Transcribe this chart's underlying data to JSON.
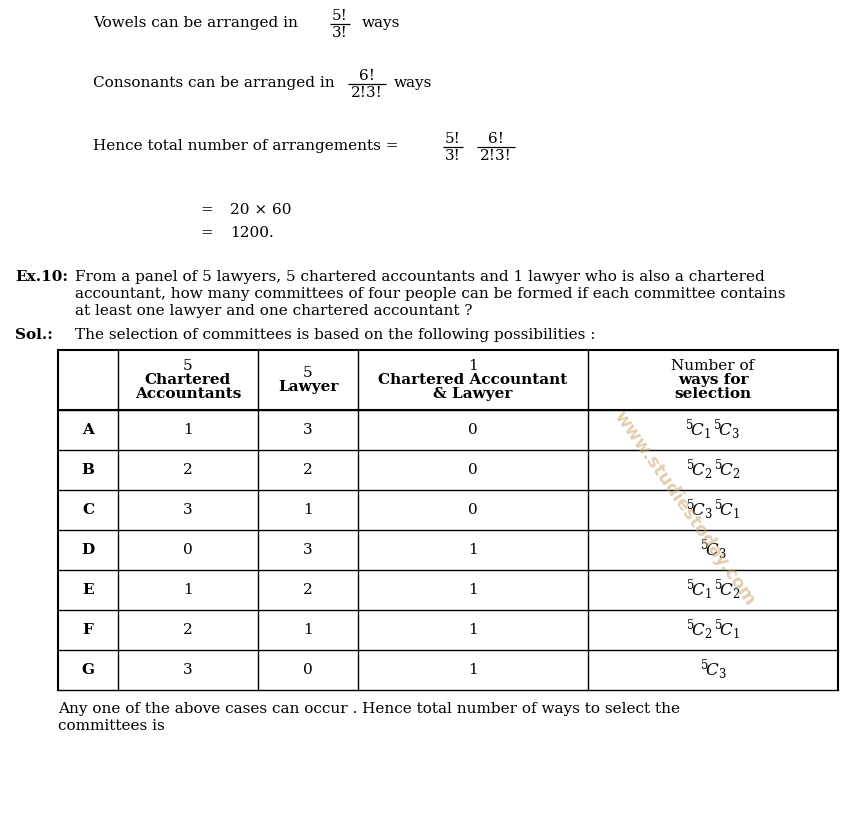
{
  "bg_color": "#ffffff",
  "text_color": "#000000",
  "font_size": 11,
  "font_family": "DejaVu Serif",
  "watermark_color": "#c8a86e",
  "table_data": {
    "col_labels": [
      "",
      "5\nChartered\nAccountants",
      "5\nLawyer",
      "1\nChartered Accountant\n& Lawyer",
      "Number of\nways for\nselection"
    ],
    "rows": [
      [
        "A",
        "1",
        "3",
        "0",
        "$^{5}\\!C_{1}\\,^{5}\\!C_{3}$"
      ],
      [
        "B",
        "2",
        "2",
        "0",
        "$^{5}\\!C_{2}\\,^{5}\\!C_{2}$"
      ],
      [
        "C",
        "3",
        "1",
        "0",
        "$^{5}\\!C_{3}\\,^{5}\\!C_{1}$"
      ],
      [
        "D",
        "0",
        "3",
        "1",
        "$^{5}\\!C_{3}$"
      ],
      [
        "E",
        "1",
        "2",
        "1",
        "$^{5}\\!C_{1}\\,^{5}\\!C_{2}$"
      ],
      [
        "F",
        "2",
        "1",
        "1",
        "$^{5}\\!C_{2}\\,^{5}\\!C_{1}$"
      ],
      [
        "G",
        "3",
        "0",
        "1",
        "$^{5}\\!C_{3}$"
      ]
    ]
  }
}
